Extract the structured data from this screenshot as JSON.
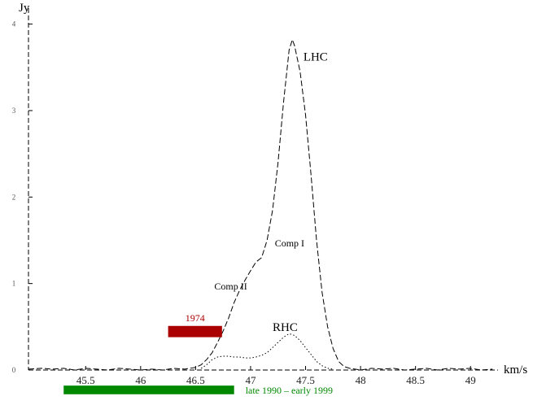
{
  "chart_data": {
    "type": "line",
    "xlabel": "km/s",
    "ylabel": "Jy",
    "xlim": [
      44.98,
      49.25
    ],
    "ylim": [
      0,
      4.1
    ],
    "x_ticks": [
      45.5,
      46,
      46.5,
      47,
      47.5,
      48,
      48.5,
      49
    ],
    "x_tick_labels": [
      "45.5",
      "46",
      "46.5",
      "47",
      "47.5",
      "48",
      "48.5",
      "49"
    ],
    "y_ticks": [
      0,
      1,
      2,
      3,
      4
    ],
    "y_tick_labels": [
      "0",
      "1",
      "2",
      "3",
      "4"
    ],
    "grid": false,
    "series": [
      {
        "name": "LHC",
        "style": "dashed",
        "x": [
          44.98,
          45.1,
          45.2,
          45.3,
          45.4,
          45.5,
          45.6,
          45.7,
          45.8,
          45.9,
          46.0,
          46.1,
          46.2,
          46.3,
          46.4,
          46.5,
          46.55,
          46.6,
          46.65,
          46.7,
          46.75,
          46.8,
          46.85,
          46.9,
          46.95,
          47.0,
          47.05,
          47.1,
          47.15,
          47.2,
          47.25,
          47.3,
          47.35,
          47.38,
          47.4,
          47.45,
          47.5,
          47.55,
          47.6,
          47.65,
          47.7,
          47.75,
          47.8,
          47.85,
          47.9,
          47.95,
          48.0,
          48.1,
          48.2,
          48.3,
          48.4,
          48.5,
          48.6,
          48.7,
          48.8,
          48.9,
          49.0,
          49.1,
          49.2
        ],
        "y": [
          0.01,
          0.02,
          0.01,
          0.02,
          0.0,
          0.02,
          0.01,
          0.0,
          0.02,
          0.01,
          0.0,
          0.01,
          0.0,
          0.02,
          0.01,
          0.03,
          0.06,
          0.12,
          0.2,
          0.32,
          0.45,
          0.6,
          0.78,
          0.92,
          1.04,
          1.15,
          1.25,
          1.3,
          1.5,
          1.85,
          2.4,
          3.1,
          3.7,
          3.82,
          3.75,
          3.45,
          2.95,
          2.25,
          1.5,
          0.9,
          0.5,
          0.25,
          0.1,
          0.04,
          0.02,
          0.01,
          0.0,
          0.02,
          0.01,
          0.02,
          0.0,
          0.01,
          0.02,
          0.0,
          0.02,
          0.01,
          0.02,
          0.0,
          0.01
        ]
      },
      {
        "name": "RHC",
        "style": "dotted",
        "x": [
          46.55,
          46.6,
          46.65,
          46.7,
          46.75,
          46.8,
          46.85,
          46.9,
          46.95,
          47.0,
          47.05,
          47.1,
          47.15,
          47.2,
          47.25,
          47.3,
          47.35,
          47.4,
          47.45,
          47.5,
          47.55,
          47.6,
          47.65,
          47.7,
          47.75
        ],
        "y": [
          0.02,
          0.06,
          0.12,
          0.15,
          0.16,
          0.16,
          0.15,
          0.15,
          0.14,
          0.14,
          0.15,
          0.17,
          0.2,
          0.26,
          0.32,
          0.38,
          0.42,
          0.4,
          0.34,
          0.26,
          0.18,
          0.1,
          0.05,
          0.02,
          0.01
        ]
      }
    ],
    "annotations": [
      {
        "text": "LHC",
        "x": 47.48,
        "y": 3.58,
        "size": "big"
      },
      {
        "text": "Comp I",
        "x": 47.22,
        "y": 1.43,
        "size": "small"
      },
      {
        "text": "Comp II",
        "x": 46.67,
        "y": 0.93,
        "size": "small"
      },
      {
        "text": "RHC",
        "x": 47.2,
        "y": 0.45,
        "size": "big"
      }
    ],
    "epoch_bars": [
      {
        "label": "1974",
        "color": "#aa0000",
        "x_start": 46.25,
        "x_end": 46.74,
        "y": 0.38,
        "height": 0.13,
        "label_side": "above"
      },
      {
        "label": "late 1990 – early 1999",
        "color": "#008800",
        "x_start": 45.3,
        "x_end": 46.85,
        "y": -0.28,
        "height": 0.1,
        "label_side": "right"
      }
    ]
  }
}
